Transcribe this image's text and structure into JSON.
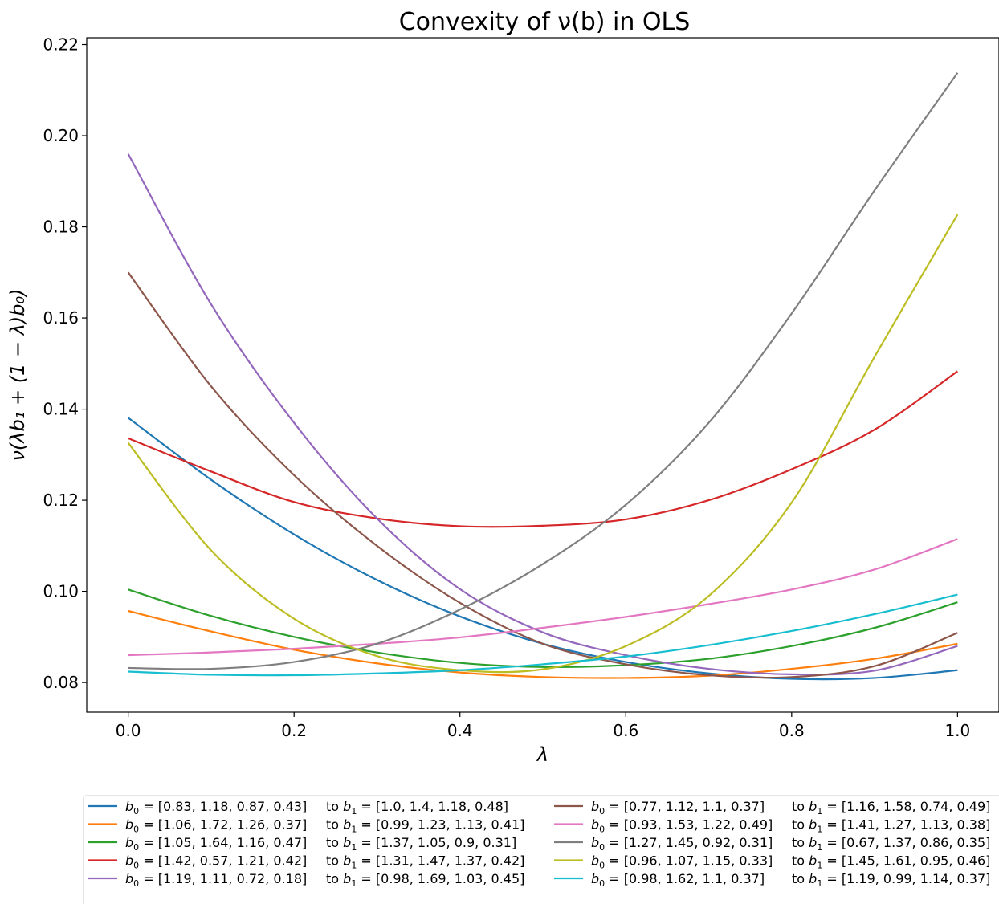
{
  "chart_data": {
    "type": "line",
    "title": "Convexity of ν(b) in OLS",
    "xlabel": "λ",
    "ylabel": "ν(λb₁ + (1 − λ)b₀)",
    "xlim": [
      -0.05,
      1.05
    ],
    "ylim": [
      0.0735,
      0.2215
    ],
    "xticks": [
      0.0,
      0.2,
      0.4,
      0.6,
      0.8,
      1.0
    ],
    "xtick_labels": [
      "0.0",
      "0.2",
      "0.4",
      "0.6",
      "0.8",
      "1.0"
    ],
    "yticks": [
      0.08,
      0.1,
      0.12,
      0.14,
      0.16,
      0.18,
      0.2,
      0.22
    ],
    "ytick_labels": [
      "0.08",
      "0.10",
      "0.12",
      "0.14",
      "0.16",
      "0.18",
      "0.20",
      "0.22"
    ],
    "grid": false,
    "legend_position": "below plot, two columns",
    "x": [
      0.0,
      0.1,
      0.2,
      0.3,
      0.4,
      0.5,
      0.6,
      0.7,
      0.8,
      0.9,
      1.0
    ],
    "series": [
      {
        "b0": "[0.83, 1.18, 0.87, 0.43]",
        "b1": "[1.0, 1.4, 1.18, 0.48]",
        "color": "#1f77b4",
        "values": [
          0.1381,
          0.1245,
          0.1125,
          0.1025,
          0.0945,
          0.0885,
          0.0845,
          0.082,
          0.0808,
          0.081,
          0.0827
        ]
      },
      {
        "b0": "[1.06, 1.72, 1.26, 0.37]",
        "b1": "[0.99, 1.23, 1.13, 0.41]",
        "color": "#ff7f0e",
        "values": [
          0.0957,
          0.0912,
          0.0872,
          0.0842,
          0.0822,
          0.0812,
          0.081,
          0.0815,
          0.083,
          0.0852,
          0.0885
        ]
      },
      {
        "b0": "[1.05, 1.64, 1.16, 0.47]",
        "b1": "[1.37, 1.05, 0.9, 0.31]",
        "color": "#2ca02c",
        "values": [
          0.1004,
          0.0946,
          0.09,
          0.0866,
          0.0843,
          0.0834,
          0.0838,
          0.0852,
          0.088,
          0.092,
          0.0976
        ]
      },
      {
        "b0": "[1.42, 0.57, 1.21, 0.42]",
        "b1": "[1.31, 1.47, 1.37, 0.42]",
        "color": "#d62728",
        "values": [
          0.1336,
          0.1263,
          0.1196,
          0.116,
          0.1143,
          0.1144,
          0.1158,
          0.12,
          0.1268,
          0.1355,
          0.1483
        ]
      },
      {
        "b0": "[1.19, 1.11, 0.72, 0.18]",
        "b1": "[0.98, 1.69, 1.03, 0.45]",
        "color": "#9467bd",
        "values": [
          0.196,
          0.163,
          0.137,
          0.116,
          0.1005,
          0.091,
          0.086,
          0.083,
          0.0818,
          0.0826,
          0.088
        ]
      },
      {
        "b0": "[0.77, 1.12, 1.1, 0.37]",
        "b1": "[1.16, 1.58, 0.74, 0.49]",
        "color": "#8c564b",
        "values": [
          0.17,
          0.145,
          0.1255,
          0.11,
          0.0975,
          0.0885,
          0.084,
          0.0816,
          0.0812,
          0.0836,
          0.0909
        ]
      },
      {
        "b0": "[0.93, 1.53, 1.22, 0.49]",
        "b1": "[1.41, 1.27, 1.13, 0.38]",
        "color": "#e377c2",
        "values": [
          0.086,
          0.0866,
          0.0874,
          0.0885,
          0.0899,
          0.092,
          0.0944,
          0.0972,
          0.1004,
          0.1048,
          0.1115
        ]
      },
      {
        "b0": "[1.27, 1.45, 0.92, 0.31]",
        "b1": "[0.67, 1.37, 0.86, 0.35]",
        "color": "#7f7f7f",
        "values": [
          0.0832,
          0.083,
          0.0845,
          0.0885,
          0.096,
          0.106,
          0.119,
          0.137,
          0.161,
          0.188,
          0.2138
        ]
      },
      {
        "b0": "[0.96, 1.07, 1.15, 0.33]",
        "b1": "[1.45, 1.61, 0.95, 0.46]",
        "color": "#bcbd22",
        "values": [
          0.1326,
          0.109,
          0.094,
          0.0858,
          0.0827,
          0.0829,
          0.088,
          0.099,
          0.1195,
          0.1515,
          0.1827
        ]
      },
      {
        "b0": "[0.98, 1.62, 1.1, 0.37]",
        "b1": "[1.19, 0.99, 1.14, 0.37]",
        "color": "#17becf",
        "values": [
          0.0824,
          0.0817,
          0.0816,
          0.082,
          0.0827,
          0.084,
          0.0857,
          0.0882,
          0.0913,
          0.095,
          0.0993
        ]
      }
    ]
  }
}
